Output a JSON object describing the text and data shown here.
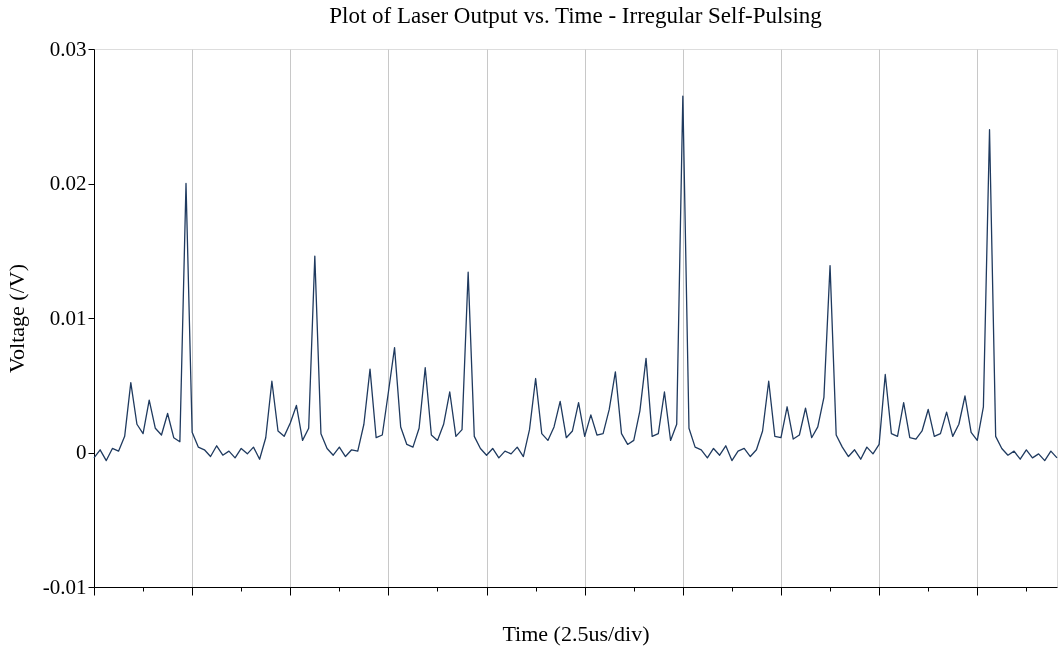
{
  "chart_data": {
    "type": "line",
    "title": "Plot of Laser Output vs. Time - Irregular Self-Pulsing",
    "xlabel": "Time (2.5us/div)",
    "ylabel": "Voltage (/V)",
    "categories": [
      null,
      null,
      null,
      null,
      null,
      null,
      null,
      null,
      null,
      null,
      null,
      null,
      null,
      null,
      null,
      null,
      null,
      null,
      null,
      null,
      null,
      null,
      null,
      null,
      null,
      null,
      null,
      null,
      null,
      null,
      null,
      null,
      null,
      null,
      null,
      null,
      null,
      null,
      null,
      null,
      null,
      null,
      null,
      null,
      null,
      null,
      null,
      null,
      null,
      null,
      null,
      null,
      null,
      null,
      null,
      null,
      null,
      null,
      null,
      null,
      null,
      null,
      null,
      null,
      null,
      null,
      null,
      null,
      null,
      null,
      null,
      null,
      null,
      null,
      null,
      null,
      null,
      null,
      null,
      null,
      null,
      null,
      null,
      null,
      null,
      null,
      null,
      null,
      null,
      null,
      null,
      null,
      null,
      null,
      null,
      null,
      null,
      null,
      null,
      null,
      null,
      null,
      null,
      null,
      null,
      null,
      null,
      null,
      null,
      null,
      null,
      null,
      null,
      null,
      null,
      null,
      null,
      null,
      null,
      null,
      null,
      null,
      null,
      null,
      null,
      null,
      null,
      null,
      null,
      null,
      null,
      null,
      null,
      null,
      null,
      null,
      null,
      null,
      null,
      null,
      null,
      null,
      null,
      null,
      null,
      null,
      null,
      null,
      null,
      null,
      null,
      null,
      null,
      null,
      null,
      null,
      null,
      null
    ],
    "series": [
      {
        "color": "#1f3a5f",
        "values": [
          -0.0004,
          0.0002,
          -0.0006,
          0.0003,
          0.0001,
          0.0012,
          0.0052,
          0.0021,
          0.0014,
          0.0039,
          0.0018,
          0.0013,
          0.0029,
          0.0011,
          0.0008,
          0.02,
          0.0015,
          0.0004,
          0.0002,
          -0.0003,
          0.0005,
          -0.0002,
          0.0001,
          -0.0004,
          0.0003,
          -0.0001,
          0.0004,
          -0.0005,
          0.0011,
          0.0053,
          0.0016,
          0.0012,
          0.0022,
          0.0035,
          0.0009,
          0.0018,
          0.0146,
          0.0014,
          0.0003,
          -0.0002,
          0.0004,
          -0.0003,
          0.0002,
          0.0001,
          0.0021,
          0.0062,
          0.0011,
          0.0013,
          0.0045,
          0.0078,
          0.0019,
          0.0006,
          0.0004,
          0.0018,
          0.0063,
          0.0013,
          0.0009,
          0.0021,
          0.0045,
          0.0012,
          0.0017,
          0.0134,
          0.0012,
          0.0003,
          -0.0002,
          0.0003,
          -0.0004,
          0.0001,
          -0.0001,
          0.0004,
          -0.0003,
          0.0017,
          0.0055,
          0.0014,
          0.0009,
          0.0019,
          0.0038,
          0.0011,
          0.0016,
          0.0037,
          0.0012,
          0.0028,
          0.0013,
          0.0014,
          0.0032,
          0.006,
          0.0014,
          0.0006,
          0.0009,
          0.0031,
          0.007,
          0.0012,
          0.0014,
          0.0045,
          0.0009,
          0.0021,
          0.0265,
          0.0018,
          0.0004,
          0.0002,
          -0.0004,
          0.0003,
          -0.0002,
          0.0005,
          -0.0006,
          0.0001,
          0.0003,
          -0.0003,
          0.0002,
          0.0016,
          0.0053,
          0.0012,
          0.0011,
          0.0034,
          0.001,
          0.0013,
          0.0033,
          0.0011,
          0.0019,
          0.0041,
          0.0139,
          0.0013,
          0.0004,
          -0.0003,
          0.0002,
          -0.0005,
          0.0004,
          -0.0001,
          0.0006,
          0.0058,
          0.0014,
          0.0012,
          0.0037,
          0.0011,
          0.001,
          0.0016,
          0.0032,
          0.0012,
          0.0014,
          0.003,
          0.0012,
          0.0021,
          0.0042,
          0.0015,
          0.0009,
          0.0034,
          0.024,
          0.0012,
          0.0003,
          -0.0002,
          0.0001,
          -0.0005,
          0.0002,
          -0.0004,
          -0.0001,
          -0.0006,
          0.0001,
          -0.0004
        ]
      }
    ],
    "ylim": [
      -0.01,
      0.03
    ],
    "yticks": [
      -0.01,
      0,
      0.01,
      0.02,
      0.03
    ],
    "grid": "x",
    "tick_labels": "y",
    "marker": "none",
    "line_style": "solid"
  }
}
